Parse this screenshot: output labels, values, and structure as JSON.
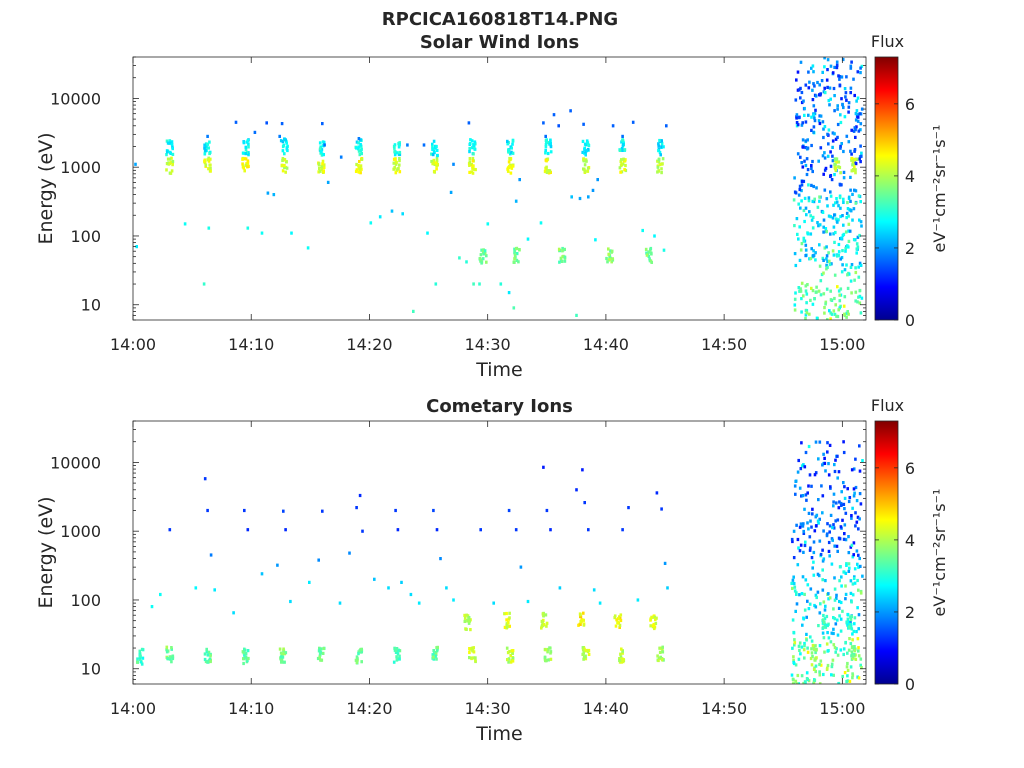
{
  "figure": {
    "title": "RPCICA160818T14.PNG"
  },
  "chart_data": [
    {
      "type": "heatmap",
      "title": "Solar Wind Ions",
      "xlabel": "Time",
      "ylabel": "Energy (eV)",
      "x_unit": "minutes",
      "xlim": [
        "14:00",
        "15:02"
      ],
      "xlim_minutes": [
        0,
        62
      ],
      "xticks": [
        "14:00",
        "14:10",
        "14:20",
        "14:30",
        "14:40",
        "14:50",
        "15:00"
      ],
      "yscale": "log",
      "ylim": [
        6,
        40000
      ],
      "yticks": [
        "10",
        "100",
        "1000",
        "10000"
      ],
      "colorbar": {
        "title": "Flux",
        "label": "eV⁻¹cm⁻²sr⁻¹s⁻¹",
        "range": [
          0,
          7.3
        ],
        "ticks": [
          "0",
          "2",
          "4",
          "6"
        ],
        "colormap": [
          "#00008f",
          "#0000ff",
          "#0080ff",
          "#00ffff",
          "#80ff80",
          "#ffff00",
          "#ff8000",
          "#ff0000",
          "#800000"
        ]
      },
      "bursts": [
        {
          "t": 3.0,
          "e": 1050,
          "f": 4.2
        },
        {
          "t": 3.0,
          "e": 1900,
          "f": 2.8
        },
        {
          "t": 6.2,
          "e": 1050,
          "f": 4.3
        },
        {
          "t": 6.2,
          "e": 2000,
          "f": 2.7
        },
        {
          "t": 9.4,
          "e": 1050,
          "f": 4.5
        },
        {
          "t": 9.4,
          "e": 1950,
          "f": 2.8
        },
        {
          "t": 12.7,
          "e": 1050,
          "f": 4.1
        },
        {
          "t": 12.7,
          "e": 2000,
          "f": 2.6
        },
        {
          "t": 15.8,
          "e": 1050,
          "f": 4.3
        },
        {
          "t": 15.8,
          "e": 1900,
          "f": 2.8
        },
        {
          "t": 19.0,
          "e": 1050,
          "f": 4.4
        },
        {
          "t": 19.0,
          "e": 1950,
          "f": 2.8
        },
        {
          "t": 22.2,
          "e": 1050,
          "f": 4.3
        },
        {
          "t": 22.2,
          "e": 1950,
          "f": 2.7
        },
        {
          "t": 25.4,
          "e": 1050,
          "f": 4.2
        },
        {
          "t": 25.4,
          "e": 1900,
          "f": 2.7
        },
        {
          "t": 28.6,
          "e": 1050,
          "f": 4.4
        },
        {
          "t": 28.6,
          "e": 1950,
          "f": 2.8
        },
        {
          "t": 31.8,
          "e": 1050,
          "f": 4.3
        },
        {
          "t": 31.8,
          "e": 2000,
          "f": 2.7
        },
        {
          "t": 35.0,
          "e": 1050,
          "f": 4.4
        },
        {
          "t": 35.0,
          "e": 1950,
          "f": 2.8
        },
        {
          "t": 38.2,
          "e": 1050,
          "f": 4.2
        },
        {
          "t": 38.2,
          "e": 1900,
          "f": 2.7
        },
        {
          "t": 41.3,
          "e": 1050,
          "f": 4.3
        },
        {
          "t": 41.3,
          "e": 1950,
          "f": 2.8
        },
        {
          "t": 44.5,
          "e": 1050,
          "f": 4.0
        },
        {
          "t": 44.5,
          "e": 1900,
          "f": 2.6
        },
        {
          "t": 29.5,
          "e": 52,
          "f": 3.4
        },
        {
          "t": 32.3,
          "e": 52,
          "f": 3.5
        },
        {
          "t": 36.2,
          "e": 52,
          "f": 3.6
        },
        {
          "t": 40.2,
          "e": 52,
          "f": 3.7
        },
        {
          "t": 43.5,
          "e": 52,
          "f": 3.5
        },
        {
          "t": 59.5,
          "e": 1050,
          "f": 4.0
        },
        {
          "t": 60.9,
          "e": 1050,
          "f": 4.2
        }
      ],
      "sparse": [
        {
          "t": 0.1,
          "e": 1100,
          "f": 2.1
        },
        {
          "t": 0.2,
          "e": 70,
          "f": 2.6
        },
        {
          "t": 4.3,
          "e": 150,
          "f": 2.8
        },
        {
          "t": 5.9,
          "e": 20,
          "f": 3.1
        },
        {
          "t": 6.3,
          "e": 130,
          "f": 2.9
        },
        {
          "t": 6.2,
          "e": 2800,
          "f": 1.8
        },
        {
          "t": 8.6,
          "e": 4500,
          "f": 1.6
        },
        {
          "t": 9.6,
          "e": 130,
          "f": 2.9
        },
        {
          "t": 10.2,
          "e": 3200,
          "f": 1.7
        },
        {
          "t": 10.8,
          "e": 110,
          "f": 2.8
        },
        {
          "t": 11.2,
          "e": 4400,
          "f": 1.5
        },
        {
          "t": 11.3,
          "e": 420,
          "f": 2.1
        },
        {
          "t": 11.8,
          "e": 400,
          "f": 2.2
        },
        {
          "t": 12.3,
          "e": 2800,
          "f": 1.8
        },
        {
          "t": 12.5,
          "e": 4300,
          "f": 1.6
        },
        {
          "t": 13.3,
          "e": 110,
          "f": 2.7
        },
        {
          "t": 14.7,
          "e": 67,
          "f": 2.8
        },
        {
          "t": 15.9,
          "e": 4300,
          "f": 1.6
        },
        {
          "t": 16.4,
          "e": 600,
          "f": 2.1
        },
        {
          "t": 17.5,
          "e": 1400,
          "f": 1.8
        },
        {
          "t": 20.0,
          "e": 155,
          "f": 2.8
        },
        {
          "t": 20.8,
          "e": 190,
          "f": 2.6
        },
        {
          "t": 21.8,
          "e": 230,
          "f": 2.3
        },
        {
          "t": 22.7,
          "e": 210,
          "f": 2.5
        },
        {
          "t": 23.1,
          "e": 2100,
          "f": 1.8
        },
        {
          "t": 23.6,
          "e": 8,
          "f": 3.2
        },
        {
          "t": 24.5,
          "e": 2100,
          "f": 1.7
        },
        {
          "t": 24.8,
          "e": 110,
          "f": 2.7
        },
        {
          "t": 25.5,
          "e": 20,
          "f": 3.0
        },
        {
          "t": 26.8,
          "e": 430,
          "f": 2.1
        },
        {
          "t": 27.5,
          "e": 48,
          "f": 3.1
        },
        {
          "t": 28.1,
          "e": 42,
          "f": 3.0
        },
        {
          "t": 28.3,
          "e": 4400,
          "f": 1.6
        },
        {
          "t": 28.7,
          "e": 20,
          "f": 3.2
        },
        {
          "t": 29.2,
          "e": 20,
          "f": 3.1
        },
        {
          "t": 29.9,
          "e": 150,
          "f": 2.8
        },
        {
          "t": 31.0,
          "e": 20,
          "f": 3.0
        },
        {
          "t": 31.7,
          "e": 15,
          "f": 2.6
        },
        {
          "t": 32.1,
          "e": 9,
          "f": 3.3
        },
        {
          "t": 32.3,
          "e": 320,
          "f": 2.2
        },
        {
          "t": 32.6,
          "e": 660,
          "f": 2.0
        },
        {
          "t": 33.3,
          "e": 90,
          "f": 2.7
        },
        {
          "t": 34.4,
          "e": 155,
          "f": 2.8
        },
        {
          "t": 34.6,
          "e": 4400,
          "f": 1.6
        },
        {
          "t": 34.8,
          "e": 2800,
          "f": 1.7
        },
        {
          "t": 35.5,
          "e": 5800,
          "f": 1.6
        },
        {
          "t": 35.9,
          "e": 4000,
          "f": 1.5
        },
        {
          "t": 36.9,
          "e": 6600,
          "f": 1.6
        },
        {
          "t": 37.0,
          "e": 370,
          "f": 2.3
        },
        {
          "t": 37.4,
          "e": 7,
          "f": 3.2
        },
        {
          "t": 37.7,
          "e": 350,
          "f": 2.1
        },
        {
          "t": 38.0,
          "e": 4200,
          "f": 1.6
        },
        {
          "t": 38.4,
          "e": 370,
          "f": 2.1
        },
        {
          "t": 38.8,
          "e": 460,
          "f": 2.0
        },
        {
          "t": 39.0,
          "e": 88,
          "f": 2.7
        },
        {
          "t": 40.5,
          "e": 4000,
          "f": 1.6
        },
        {
          "t": 41.3,
          "e": 2800,
          "f": 1.7
        },
        {
          "t": 42.2,
          "e": 4500,
          "f": 1.6
        },
        {
          "t": 43.0,
          "e": 120,
          "f": 2.8
        },
        {
          "t": 44.0,
          "e": 100,
          "f": 2.7
        },
        {
          "t": 44.8,
          "e": 62,
          "f": 2.9
        },
        {
          "t": 45.0,
          "e": 4000,
          "f": 1.6
        },
        {
          "t": 19.0,
          "e": 2600,
          "f": 1.8
        },
        {
          "t": 27.0,
          "e": 1100,
          "f": 1.9
        },
        {
          "t": 16.1,
          "e": 2100,
          "f": 1.7
        },
        {
          "t": 39.2,
          "e": 660,
          "f": 2.0
        }
      ],
      "region": {
        "t0": 55.8,
        "t1": 61.6,
        "emin": 6,
        "emax": 40000
      }
    },
    {
      "type": "heatmap",
      "title": "Cometary Ions",
      "xlabel": "Time",
      "ylabel": "Energy (eV)",
      "x_unit": "minutes",
      "xlim": [
        "14:00",
        "15:02"
      ],
      "xlim_minutes": [
        0,
        62
      ],
      "xticks": [
        "14:00",
        "14:10",
        "14:20",
        "14:30",
        "14:40",
        "14:50",
        "15:00"
      ],
      "yscale": "log",
      "ylim": [
        6,
        40000
      ],
      "yticks": [
        "10",
        "100",
        "1000",
        "10000"
      ],
      "colorbar": {
        "title": "Flux",
        "label": "eV⁻¹cm⁻²sr⁻¹s⁻¹",
        "range": [
          0,
          7.3
        ],
        "ticks": [
          "0",
          "2",
          "4",
          "6"
        ],
        "colormap": [
          "#00008f",
          "#0000ff",
          "#0080ff",
          "#00ffff",
          "#80ff80",
          "#ffff00",
          "#ff8000",
          "#ff0000",
          "#800000"
        ]
      },
      "bursts": [
        {
          "t": 0.5,
          "e": 15,
          "f": 3.2
        },
        {
          "t": 3.0,
          "e": 16,
          "f": 3.6
        },
        {
          "t": 6.2,
          "e": 16,
          "f": 3.5
        },
        {
          "t": 9.4,
          "e": 15,
          "f": 3.3
        },
        {
          "t": 12.6,
          "e": 16,
          "f": 3.6
        },
        {
          "t": 15.8,
          "e": 16,
          "f": 3.4
        },
        {
          "t": 19.0,
          "e": 15,
          "f": 3.5
        },
        {
          "t": 22.2,
          "e": 16,
          "f": 3.2
        },
        {
          "t": 25.4,
          "e": 16,
          "f": 3.4
        },
        {
          "t": 28.6,
          "e": 16,
          "f": 4.2
        },
        {
          "t": 31.8,
          "e": 16,
          "f": 4.1
        },
        {
          "t": 35.0,
          "e": 16,
          "f": 4.0
        },
        {
          "t": 38.2,
          "e": 16,
          "f": 4.1
        },
        {
          "t": 41.3,
          "e": 16,
          "f": 4.0
        },
        {
          "t": 44.5,
          "e": 16,
          "f": 3.8
        },
        {
          "t": 28.2,
          "e": 47,
          "f": 4.0
        },
        {
          "t": 31.5,
          "e": 50,
          "f": 4.3
        },
        {
          "t": 34.7,
          "e": 50,
          "f": 4.2
        },
        {
          "t": 37.8,
          "e": 50,
          "f": 4.6
        },
        {
          "t": 40.9,
          "e": 50,
          "f": 4.5
        },
        {
          "t": 43.9,
          "e": 48,
          "f": 4.3
        },
        {
          "t": 57.5,
          "e": 17,
          "f": 3.8
        },
        {
          "t": 60.9,
          "e": 17,
          "f": 3.7
        },
        {
          "t": 58.5,
          "e": 48,
          "f": 3.3
        },
        {
          "t": 60.5,
          "e": 48,
          "f": 3.1
        }
      ],
      "sparse": [
        {
          "t": 1.5,
          "e": 80,
          "f": 2.8
        },
        {
          "t": 2.2,
          "e": 120,
          "f": 2.8
        },
        {
          "t": 3.0,
          "e": 1050,
          "f": 1.3
        },
        {
          "t": 5.2,
          "e": 150,
          "f": 2.7
        },
        {
          "t": 6.0,
          "e": 5800,
          "f": 1.3
        },
        {
          "t": 6.2,
          "e": 2000,
          "f": 1.3
        },
        {
          "t": 6.5,
          "e": 450,
          "f": 1.8
        },
        {
          "t": 6.8,
          "e": 140,
          "f": 2.6
        },
        {
          "t": 8.4,
          "e": 65,
          "f": 2.5
        },
        {
          "t": 9.3,
          "e": 2000,
          "f": 1.3
        },
        {
          "t": 9.6,
          "e": 1050,
          "f": 1.2
        },
        {
          "t": 10.8,
          "e": 240,
          "f": 2.3
        },
        {
          "t": 12.1,
          "e": 320,
          "f": 2.0
        },
        {
          "t": 12.6,
          "e": 1950,
          "f": 1.4
        },
        {
          "t": 12.8,
          "e": 1050,
          "f": 1.2
        },
        {
          "t": 13.2,
          "e": 95,
          "f": 2.5
        },
        {
          "t": 14.8,
          "e": 180,
          "f": 2.6
        },
        {
          "t": 15.6,
          "e": 380,
          "f": 1.9
        },
        {
          "t": 15.9,
          "e": 1950,
          "f": 1.3
        },
        {
          "t": 17.4,
          "e": 90,
          "f": 2.5
        },
        {
          "t": 18.2,
          "e": 480,
          "f": 1.9
        },
        {
          "t": 18.8,
          "e": 2200,
          "f": 1.3
        },
        {
          "t": 19.1,
          "e": 3300,
          "f": 1.2
        },
        {
          "t": 19.3,
          "e": 1000,
          "f": 1.3
        },
        {
          "t": 20.3,
          "e": 200,
          "f": 2.3
        },
        {
          "t": 21.5,
          "e": 150,
          "f": 2.5
        },
        {
          "t": 22.1,
          "e": 2000,
          "f": 1.3
        },
        {
          "t": 22.3,
          "e": 1050,
          "f": 1.2
        },
        {
          "t": 22.6,
          "e": 180,
          "f": 2.4
        },
        {
          "t": 23.4,
          "e": 120,
          "f": 2.5
        },
        {
          "t": 24.1,
          "e": 90,
          "f": 2.6
        },
        {
          "t": 25.3,
          "e": 2000,
          "f": 1.4
        },
        {
          "t": 25.6,
          "e": 1050,
          "f": 1.2
        },
        {
          "t": 25.9,
          "e": 400,
          "f": 1.9
        },
        {
          "t": 26.4,
          "e": 150,
          "f": 2.5
        },
        {
          "t": 27.0,
          "e": 100,
          "f": 2.6
        },
        {
          "t": 29.3,
          "e": 1050,
          "f": 1.3
        },
        {
          "t": 30.4,
          "e": 90,
          "f": 2.5
        },
        {
          "t": 31.7,
          "e": 2000,
          "f": 1.4
        },
        {
          "t": 32.3,
          "e": 1050,
          "f": 1.3
        },
        {
          "t": 32.7,
          "e": 300,
          "f": 2.0
        },
        {
          "t": 33.3,
          "e": 95,
          "f": 2.6
        },
        {
          "t": 34.6,
          "e": 8500,
          "f": 1.1
        },
        {
          "t": 34.9,
          "e": 2000,
          "f": 1.3
        },
        {
          "t": 35.2,
          "e": 1050,
          "f": 1.2
        },
        {
          "t": 36.0,
          "e": 150,
          "f": 2.4
        },
        {
          "t": 37.4,
          "e": 4000,
          "f": 1.2
        },
        {
          "t": 37.9,
          "e": 7800,
          "f": 1.1
        },
        {
          "t": 38.1,
          "e": 2600,
          "f": 1.3
        },
        {
          "t": 38.4,
          "e": 1050,
          "f": 1.3
        },
        {
          "t": 38.9,
          "e": 140,
          "f": 2.5
        },
        {
          "t": 39.4,
          "e": 90,
          "f": 2.6
        },
        {
          "t": 41.3,
          "e": 1050,
          "f": 1.3
        },
        {
          "t": 41.8,
          "e": 2200,
          "f": 1.3
        },
        {
          "t": 42.6,
          "e": 100,
          "f": 2.6
        },
        {
          "t": 44.2,
          "e": 3600,
          "f": 1.2
        },
        {
          "t": 44.6,
          "e": 2100,
          "f": 1.3
        },
        {
          "t": 44.9,
          "e": 340,
          "f": 2.0
        },
        {
          "t": 45.1,
          "e": 150,
          "f": 2.4
        }
      ],
      "region": {
        "t0": 55.6,
        "t1": 61.6,
        "emin": 6,
        "emax": 20000
      }
    }
  ]
}
